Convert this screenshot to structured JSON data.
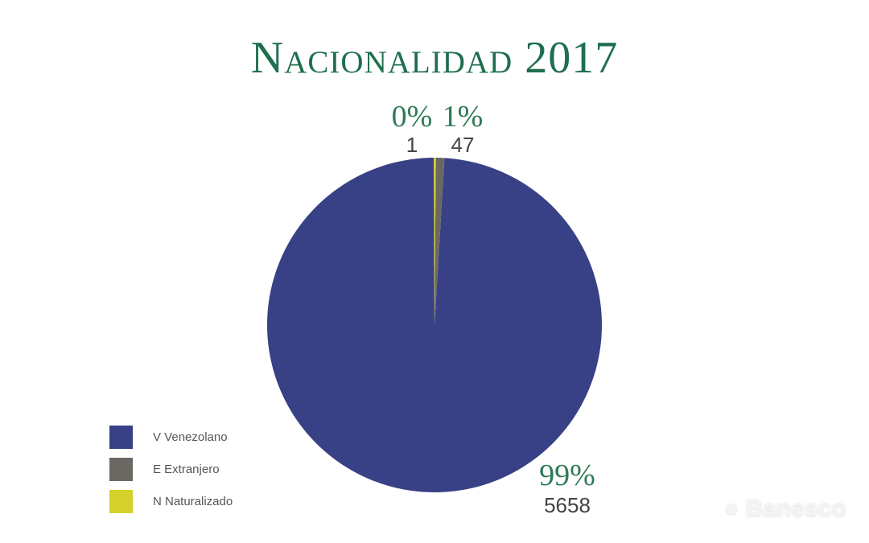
{
  "chart_data": {
    "type": "pie",
    "title": "Nacionalidad 2017",
    "legend_position": "bottom-left",
    "slices": [
      {
        "label": "V Venezolano",
        "value": 5658,
        "percent": "99%",
        "color": "#384185"
      },
      {
        "label": "E Extranjero",
        "value": 47,
        "percent": "1%",
        "color": "#6b6864"
      },
      {
        "label": "N Naturalizado",
        "value": 1,
        "percent": "0%",
        "color": "#d4d22a"
      }
    ]
  },
  "watermark": "Banesco"
}
